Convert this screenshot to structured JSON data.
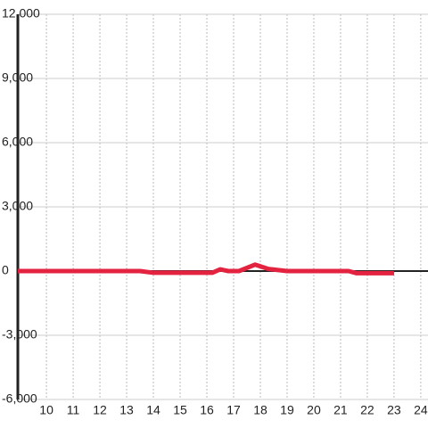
{
  "chart_data": {
    "type": "line",
    "x": [
      8.93,
      13.5,
      14,
      16.2,
      16.5,
      16.8,
      17.2,
      17.8,
      18.3,
      19,
      21.3,
      21.6,
      23
    ],
    "series": [
      {
        "color": "#e3233f",
        "values": [
          0,
          0,
          -80,
          -80,
          80,
          0,
          0,
          300,
          100,
          0,
          0,
          -100,
          -100
        ]
      }
    ],
    "xlim": [
      8.93,
      24.27
    ],
    "ylim": [
      -6000,
      12000
    ],
    "xticks": [
      10,
      11,
      12,
      13,
      14,
      15,
      16,
      17,
      18,
      19,
      20,
      21,
      22,
      23,
      24
    ],
    "yticks": [
      {
        "value": -6000,
        "label": "-6,000"
      },
      {
        "value": -3000,
        "label": "-3,000"
      },
      0,
      {
        "value": 3000,
        "label": "3,000"
      },
      {
        "value": 6000,
        "label": "6,000"
      },
      {
        "value": 9000,
        "label": "9,000"
      },
      {
        "value": 12000,
        "label": "12,000"
      }
    ],
    "grid": true
  }
}
